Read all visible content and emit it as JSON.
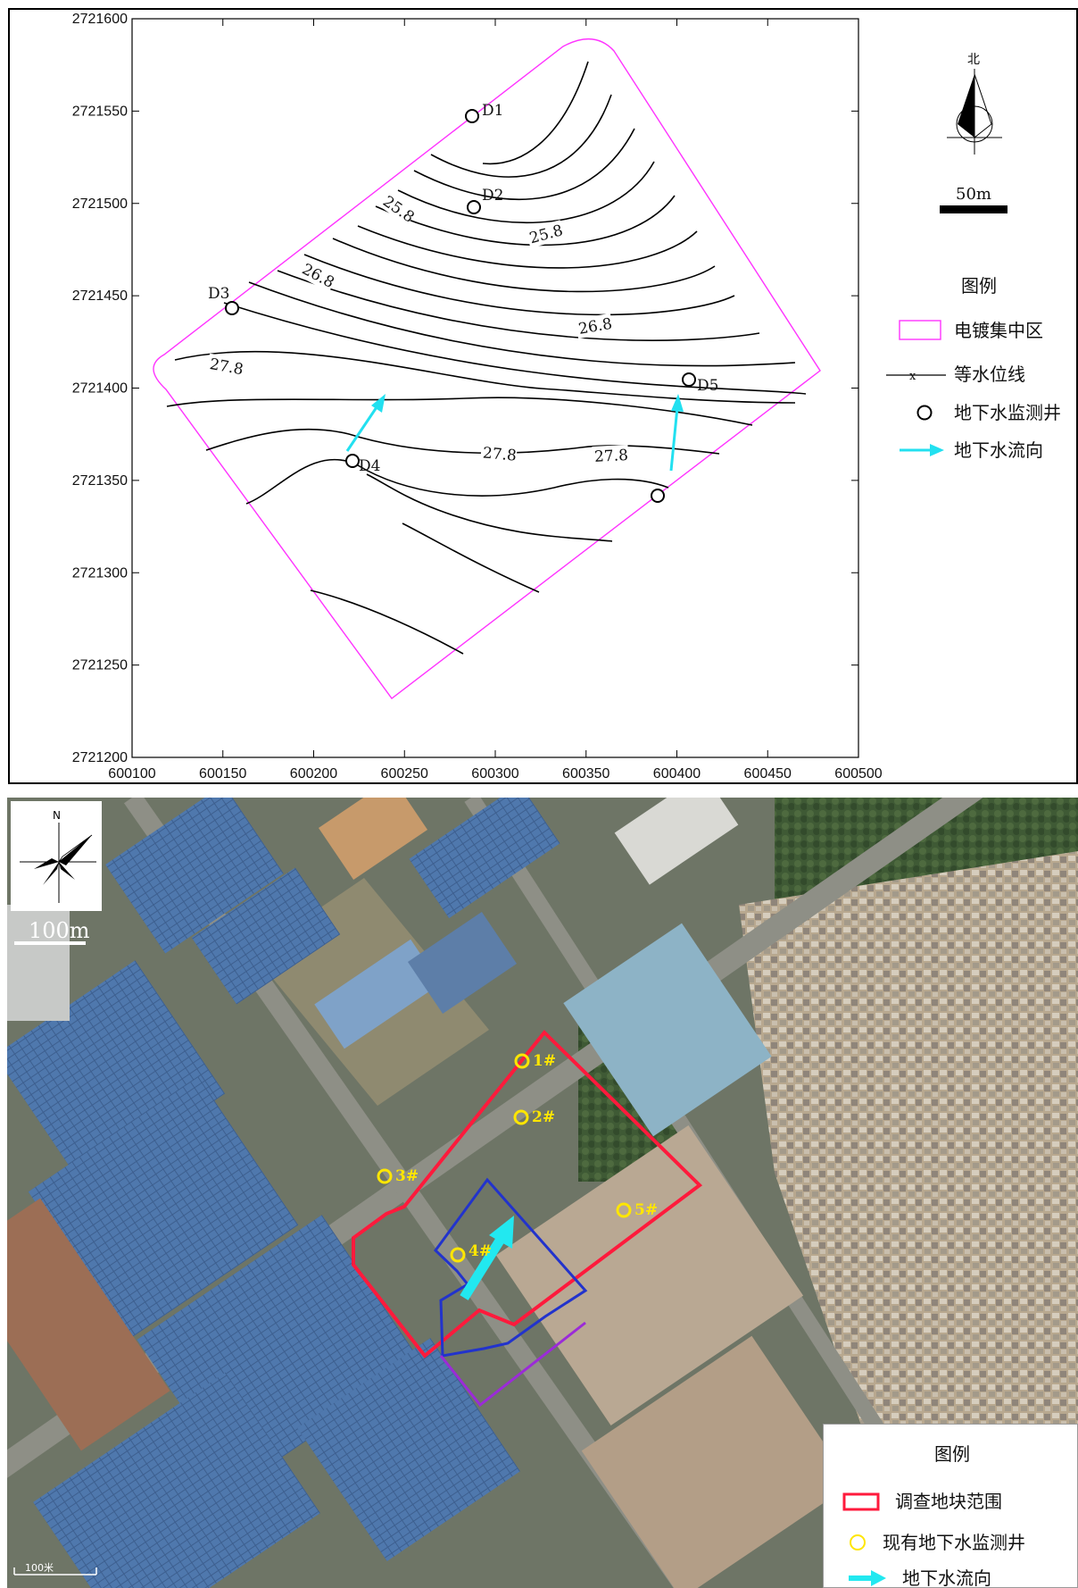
{
  "top_map": {
    "y_ticks": [
      "2721600",
      "2721550",
      "2721500",
      "2721450",
      "2721400",
      "2721350",
      "2721300",
      "2721250",
      "2721200"
    ],
    "x_ticks": [
      "600100",
      "600150",
      "600200",
      "600250",
      "600300",
      "600350",
      "600400",
      "600450",
      "600500"
    ],
    "wells": [
      "D1",
      "D2",
      "D3",
      "D4",
      "D5"
    ],
    "contour_labels": [
      "25.8",
      "25.8",
      "26.8",
      "26.8",
      "27.8",
      "27.8",
      "27.8"
    ],
    "north_label": "北",
    "scale_label": "50m",
    "legend": {
      "title": "图例",
      "items": [
        "电镀集中区",
        "等水位线",
        "地下水监测井",
        "地下水流向"
      ],
      "contour_marker": "x"
    },
    "colors": {
      "boundary": "#ff33ff",
      "flow_arrow": "#22e0f0",
      "contour": "#000000"
    }
  },
  "photo_map": {
    "north_label": "N",
    "scale_label": "100m",
    "corner_scale_label": "100米",
    "wells": [
      "1#",
      "2#",
      "3#",
      "4#",
      "5#"
    ],
    "legend": {
      "title": "图例",
      "items": [
        "调查地块范围",
        "现有地下水监测井",
        "地下水流向"
      ]
    },
    "colors": {
      "site_boundary": "#ff1a3c",
      "inner_boundary": "#2233cc",
      "well": "#ffe600",
      "flow_arrow": "#22e8f0"
    }
  }
}
